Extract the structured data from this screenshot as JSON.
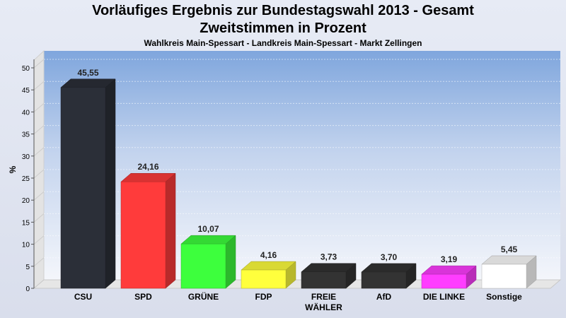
{
  "title": "Vorläufiges Ergebnis zur Bundestagswahl 2013 - Gesamt",
  "title2": "Zweitstimmen in Prozent",
  "subtitle": "Wahlkreis Main-Spessart - Landkreis Main-Spessart - Markt Zellingen",
  "chart_data": {
    "type": "bar",
    "title": "Vorläufiges Ergebnis zur Bundestagswahl 2013 - Gesamt",
    "subtitle": "Zweitstimmen in Prozent",
    "ylabel": "%",
    "xlabel": "",
    "ylim": [
      0,
      50
    ],
    "yticks": [
      0,
      5,
      10,
      15,
      20,
      25,
      30,
      35,
      40,
      45,
      50
    ],
    "grid": true,
    "categories": [
      "CSU",
      "SPD",
      "GRÜNE",
      "FDP",
      "FREIE WÄHLER",
      "AfD",
      "DIE LINKE",
      "Sonstige"
    ],
    "values": [
      45.55,
      24.16,
      10.07,
      4.16,
      3.73,
      3.7,
      3.19,
      5.45
    ],
    "value_labels": [
      "45,55",
      "24,16",
      "10,07",
      "4,16",
      "3,73",
      "3,70",
      "3,19",
      "5,45"
    ],
    "colors": [
      "#2b2f38",
      "#ff3b3b",
      "#3dff3d",
      "#ffff3d",
      "#333333",
      "#333333",
      "#ff3dff",
      "#ffffff"
    ]
  }
}
